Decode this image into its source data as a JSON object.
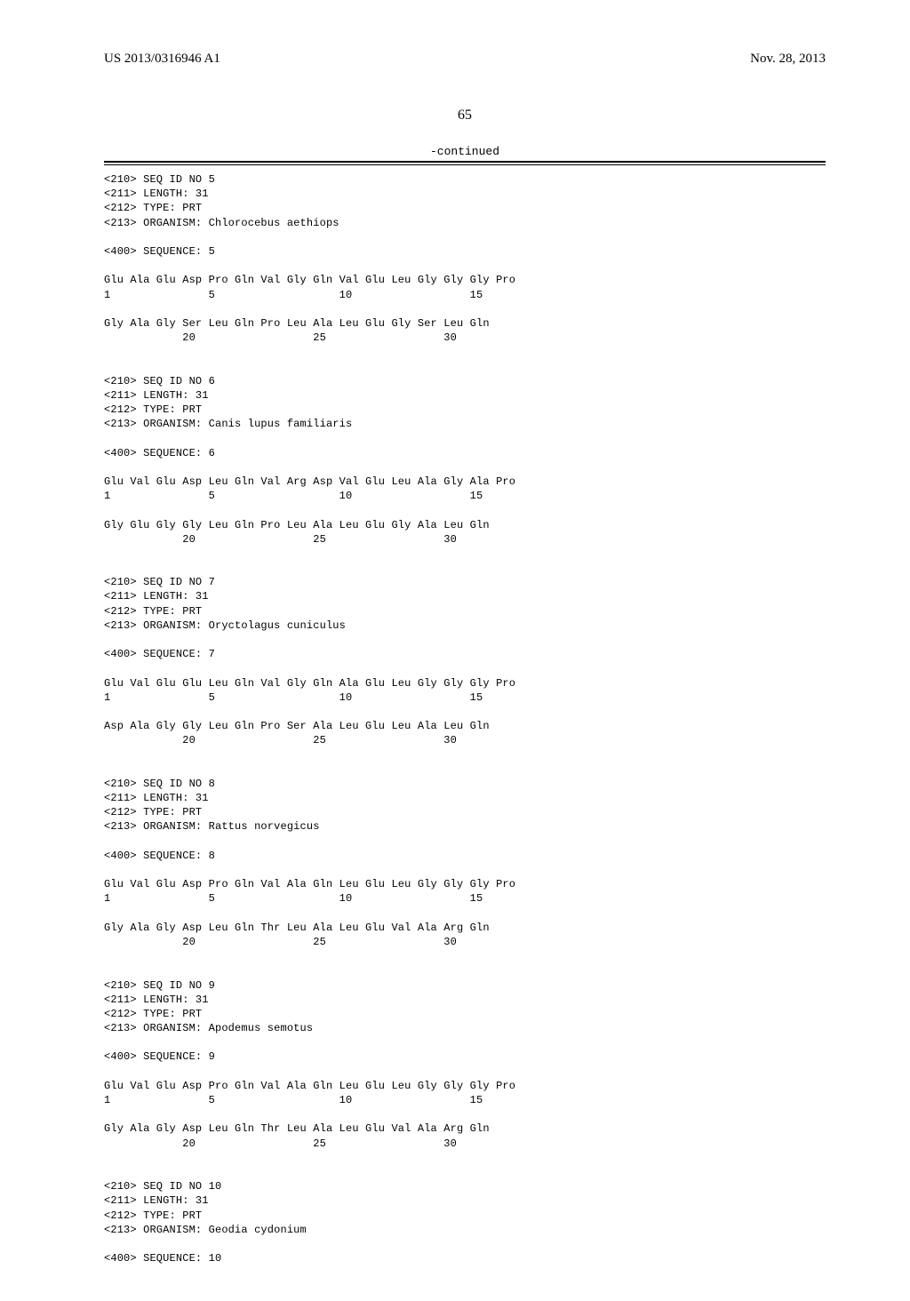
{
  "header": {
    "pub_number": "US 2013/0316946 A1",
    "pub_date": "Nov. 28, 2013"
  },
  "page_number": "65",
  "continued_label": "-continued",
  "sequences": [
    {
      "id": "5",
      "length": "31",
      "type": "PRT",
      "organism": "Chlorocebus aethiops",
      "seq_number": "5",
      "lines": [
        {
          "residues": "Glu Ala Glu Asp Pro Gln Val Gly Gln Val Glu Leu Gly Gly Gly Pro",
          "numbers": "1               5                   10                  15"
        },
        {
          "residues": "Gly Ala Gly Ser Leu Gln Pro Leu Ala Leu Glu Gly Ser Leu Gln",
          "numbers": "            20                  25                  30"
        }
      ]
    },
    {
      "id": "6",
      "length": "31",
      "type": "PRT",
      "organism": "Canis lupus familiaris",
      "seq_number": "6",
      "lines": [
        {
          "residues": "Glu Val Glu Asp Leu Gln Val Arg Asp Val Glu Leu Ala Gly Ala Pro",
          "numbers": "1               5                   10                  15"
        },
        {
          "residues": "Gly Glu Gly Gly Leu Gln Pro Leu Ala Leu Glu Gly Ala Leu Gln",
          "numbers": "            20                  25                  30"
        }
      ]
    },
    {
      "id": "7",
      "length": "31",
      "type": "PRT",
      "organism": "Oryctolagus cuniculus",
      "seq_number": "7",
      "lines": [
        {
          "residues": "Glu Val Glu Glu Leu Gln Val Gly Gln Ala Glu Leu Gly Gly Gly Pro",
          "numbers": "1               5                   10                  15"
        },
        {
          "residues": "Asp Ala Gly Gly Leu Gln Pro Ser Ala Leu Glu Leu Ala Leu Gln",
          "numbers": "            20                  25                  30"
        }
      ]
    },
    {
      "id": "8",
      "length": "31",
      "type": "PRT",
      "organism": "Rattus norvegicus",
      "seq_number": "8",
      "lines": [
        {
          "residues": "Glu Val Glu Asp Pro Gln Val Ala Gln Leu Glu Leu Gly Gly Gly Pro",
          "numbers": "1               5                   10                  15"
        },
        {
          "residues": "Gly Ala Gly Asp Leu Gln Thr Leu Ala Leu Glu Val Ala Arg Gln",
          "numbers": "            20                  25                  30"
        }
      ]
    },
    {
      "id": "9",
      "length": "31",
      "type": "PRT",
      "organism": "Apodemus semotus",
      "seq_number": "9",
      "lines": [
        {
          "residues": "Glu Val Glu Asp Pro Gln Val Ala Gln Leu Glu Leu Gly Gly Gly Pro",
          "numbers": "1               5                   10                  15"
        },
        {
          "residues": "Gly Ala Gly Asp Leu Gln Thr Leu Ala Leu Glu Val Ala Arg Gln",
          "numbers": "            20                  25                  30"
        }
      ]
    },
    {
      "id": "10",
      "length": "31",
      "type": "PRT",
      "organism": "Geodia cydonium",
      "seq_number": "10",
      "lines": []
    }
  ],
  "labels": {
    "seq_id": "<210> SEQ ID NO ",
    "length": "<211> LENGTH: ",
    "type": "<212> TYPE: ",
    "organism": "<213> ORGANISM: ",
    "sequence": "<400> SEQUENCE: "
  }
}
